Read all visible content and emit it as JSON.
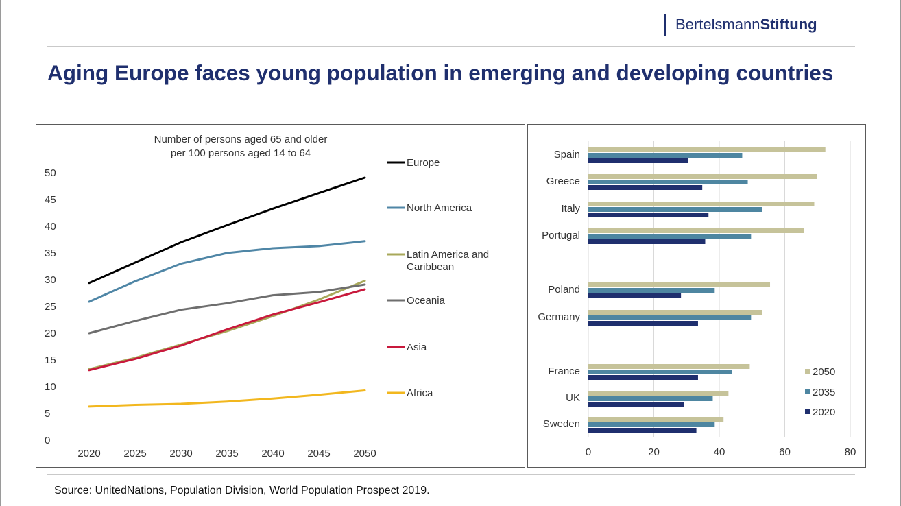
{
  "header": {
    "brand_part1": "Bertelsmann",
    "brand_part2": "Stiftung",
    "title": "Aging Europe faces young population in emerging and developing countries"
  },
  "footer": {
    "source": "Source: UnitedNations, Population Division, World Population Prospect 2019."
  },
  "chart_data": [
    {
      "type": "line",
      "title_line1": "Number  of persons aged 65 and older",
      "title_line2": "per 100 persons aged 14 to 64",
      "xlabel": "",
      "ylabel": "",
      "x": [
        "2020",
        "2025",
        "2030",
        "2035",
        "2040",
        "2045",
        "2050"
      ],
      "ylim": [
        0,
        50
      ],
      "yticks": [
        0,
        5,
        10,
        15,
        20,
        25,
        30,
        35,
        40,
        45,
        50
      ],
      "grid": false,
      "legend": "right",
      "series": [
        {
          "name": "Europe",
          "color": "#000000",
          "values": [
            29.4,
            33.2,
            37.0,
            40.2,
            43.3,
            46.2,
            49.1
          ]
        },
        {
          "name": "North America",
          "color": "#4f86a6",
          "values": [
            25.9,
            29.7,
            33.0,
            35.0,
            35.9,
            36.3,
            37.2
          ]
        },
        {
          "name": "Latin America and Caribbean",
          "color": "#a8a85a",
          "values": [
            13.3,
            15.4,
            17.9,
            20.4,
            23.2,
            26.3,
            29.8
          ]
        },
        {
          "name": "Oceania",
          "color": "#6e6e6e",
          "values": [
            20.0,
            22.3,
            24.4,
            25.6,
            27.1,
            27.7,
            29.1
          ]
        },
        {
          "name": "Asia",
          "color": "#c8193c",
          "values": [
            13.1,
            15.2,
            17.7,
            20.7,
            23.5,
            25.8,
            28.2
          ]
        },
        {
          "name": "Africa",
          "color": "#f2b71e",
          "values": [
            6.3,
            6.6,
            6.8,
            7.2,
            7.8,
            8.5,
            9.3
          ]
        }
      ]
    },
    {
      "type": "bar",
      "orientation": "horizontal",
      "xlim": [
        0,
        80
      ],
      "xticks": [
        0,
        20,
        40,
        60,
        80
      ],
      "grid": true,
      "legend": "bottom-right",
      "categories": [
        "Spain",
        "Greece",
        "Italy",
        "Portugal",
        "Poland",
        "Germany",
        "France",
        "UK",
        "Sweden"
      ],
      "series": [
        {
          "name": "2050",
          "color": "#c6c39a",
          "values": [
            72.4,
            69.8,
            69.0,
            65.8,
            55.5,
            53.0,
            49.3,
            42.8,
            41.3
          ]
        },
        {
          "name": "2035",
          "color": "#4e86a1",
          "values": [
            47.0,
            48.7,
            53.0,
            49.7,
            38.6,
            49.7,
            43.8,
            38.0,
            38.6
          ]
        },
        {
          "name": "2020",
          "color": "#1f2f6e",
          "values": [
            30.5,
            34.8,
            36.7,
            35.7,
            28.3,
            33.5,
            33.5,
            29.3,
            33.0
          ]
        }
      ]
    }
  ]
}
